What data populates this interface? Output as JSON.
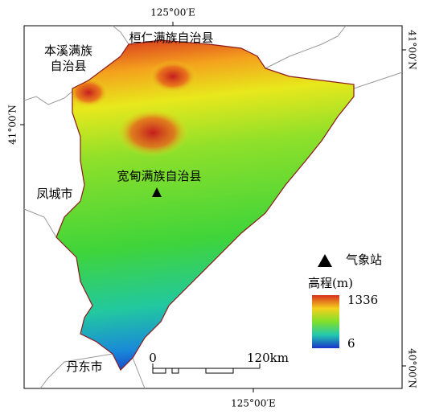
{
  "map": {
    "graticule": {
      "top": "125°00′E",
      "bottom": "125°00′E",
      "left": "41°00′N",
      "right_top": "41°00′N",
      "right_bottom": "40°00′N"
    },
    "places": {
      "benxi": [
        "本溪满族",
        "自治县"
      ],
      "huanren": "桓仁满族自治县",
      "kuandian": "宽甸满族自治县",
      "fengcheng": "凤城市",
      "dandong": "丹东市"
    },
    "legend": {
      "station": "气象站",
      "elevation_title": "高程(m)",
      "max": 1336,
      "min": 6
    },
    "scale": {
      "start": 0,
      "end": "120km"
    }
  }
}
